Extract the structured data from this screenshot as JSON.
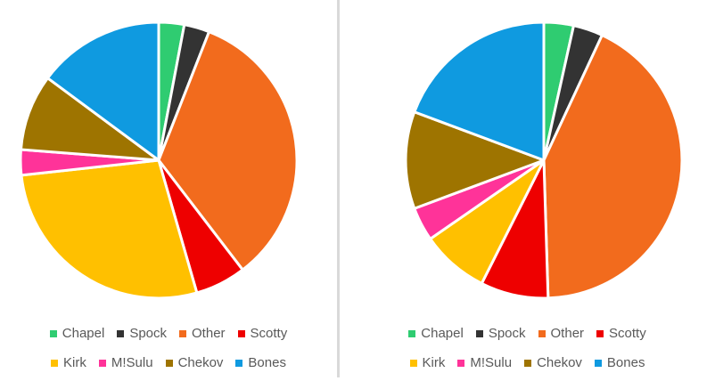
{
  "chart_data": [
    {
      "type": "pie",
      "title": "",
      "categories": [
        "Chapel",
        "Spock",
        "Other",
        "Scotty",
        "Kirk",
        "M!Sulu",
        "Chekov",
        "Bones"
      ],
      "values": [
        3,
        3,
        34,
        6,
        28,
        3,
        9,
        15
      ],
      "colors": [
        "#2fcc71",
        "#333333",
        "#f26b1d",
        "#ee0000",
        "#ffc000",
        "#ff3399",
        "#9e7400",
        "#0f9ae0"
      ],
      "legend_position": "bottom"
    },
    {
      "type": "pie",
      "title": "",
      "categories": [
        "Chapel",
        "Spock",
        "Other",
        "Scotty",
        "Kirk",
        "M!Sulu",
        "Chekov",
        "Bones"
      ],
      "values": [
        3.5,
        3.5,
        43,
        8,
        8,
        4,
        11.5,
        19.5
      ],
      "colors": [
        "#2fcc71",
        "#333333",
        "#f26b1d",
        "#ee0000",
        "#ffc000",
        "#ff3399",
        "#9e7400",
        "#0f9ae0"
      ],
      "legend_position": "bottom"
    }
  ]
}
